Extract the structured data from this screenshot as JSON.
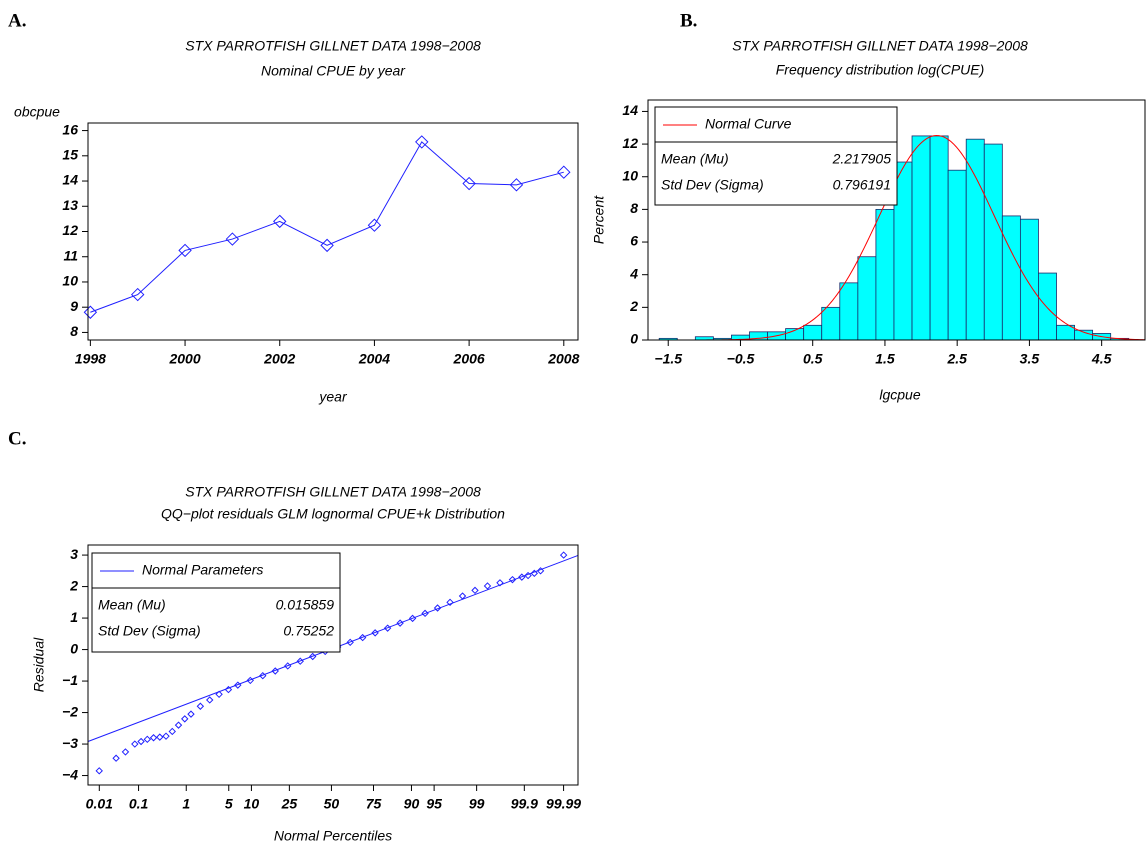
{
  "chart_data": [
    {
      "type": "line",
      "panel_label": "A.",
      "title": "STX PARROTFISH GILLNET DATA 1998−2008",
      "subtitle": "Nominal CPUE by year",
      "x_label": "year",
      "y_label": "obcpue",
      "color": "#1f1fff",
      "x": [
        1998,
        1999,
        2000,
        2001,
        2002,
        2003,
        2004,
        2005,
        2006,
        2007,
        2008
      ],
      "values": [
        8.8,
        9.5,
        11.25,
        11.7,
        12.4,
        11.45,
        12.25,
        15.55,
        13.9,
        13.85,
        14.35
      ],
      "xlim": [
        1997.95,
        2008.3
      ],
      "xticks": [
        1998,
        2000,
        2002,
        2004,
        2006,
        2008
      ],
      "ylim": [
        7.7,
        16.3
      ],
      "yticks": [
        8,
        9,
        10,
        11,
        12,
        13,
        14,
        15,
        16
      ]
    },
    {
      "type": "histogram",
      "panel_label": "B.",
      "title": "STX PARROTFISH GILLNET DATA 1998−2008",
      "subtitle": "Frequency distribution log(CPUE)",
      "x_label": "lgcpue",
      "y_label": "Percent",
      "color": "#00ffff",
      "bins": [
        -1.625,
        -1.375,
        -1.125,
        -0.875,
        -0.625,
        -0.375,
        -0.125,
        0.125,
        0.375,
        0.625,
        0.875,
        1.125,
        1.375,
        1.625,
        1.875,
        2.125,
        2.375,
        2.625,
        2.875,
        3.125,
        3.375,
        3.625,
        3.875,
        4.125,
        4.375,
        4.625,
        4.875
      ],
      "counts": [
        0.1,
        0,
        0.2,
        0.1,
        0.3,
        0.5,
        0.5,
        0.7,
        0.9,
        2.0,
        3.5,
        5.1,
        8.0,
        10.9,
        12.5,
        12.5,
        10.4,
        12.3,
        12.0,
        7.6,
        7.4,
        4.1,
        0.9,
        0.6,
        0.4,
        0.1
      ],
      "curve": {
        "name": "Normal Curve",
        "color": "#ff0000"
      },
      "legend_stats": [
        {
          "label": "Mean (Mu)",
          "value": 2.217905
        },
        {
          "label": "Std Dev (Sigma)",
          "value": 0.796191
        }
      ],
      "xlim": [
        -1.78,
        5.1
      ],
      "xticks": [
        {
          "value": -1.5,
          "label": "−1.5"
        },
        {
          "value": -0.5,
          "label": "−0.5"
        },
        0.5,
        1.5,
        2.5,
        3.5,
        4.5
      ],
      "ylim": [
        0,
        14.7
      ],
      "yticks": [
        0,
        2,
        4,
        6,
        8,
        10,
        12,
        14
      ]
    },
    {
      "type": "scatter",
      "panel_label": "C.",
      "title": "STX PARROTFISH GILLNET DATA 1998−2008",
      "subtitle": "QQ−plot residuals GLM lognormal CPUE+k Distribution",
      "x_label": "Normal Percentiles",
      "y_label": "Residual",
      "color": "#1f1fff",
      "x": [
        -3.72,
        -3.45,
        -3.3,
        -3.15,
        -3.05,
        -2.95,
        -2.85,
        -2.75,
        -2.65,
        -2.55,
        -2.45,
        -2.35,
        -2.25,
        -2.1,
        -1.95,
        -1.8,
        -1.65,
        -1.5,
        -1.3,
        -1.1,
        -0.9,
        -0.7,
        -0.5,
        -0.3,
        -0.1,
        0.1,
        0.3,
        0.5,
        0.7,
        0.9,
        1.1,
        1.3,
        1.5,
        1.7,
        1.9,
        2.1,
        2.3,
        2.5,
        2.7,
        2.9,
        3.05,
        3.15,
        3.25,
        3.35,
        3.72
      ],
      "values": [
        -3.85,
        -3.45,
        -3.25,
        -3.0,
        -2.92,
        -2.85,
        -2.8,
        -2.78,
        -2.75,
        -2.6,
        -2.4,
        -2.2,
        -2.05,
        -1.8,
        -1.6,
        -1.42,
        -1.27,
        -1.13,
        -0.98,
        -0.83,
        -0.68,
        -0.52,
        -0.37,
        -0.22,
        -0.06,
        0.08,
        0.23,
        0.38,
        0.53,
        0.68,
        0.84,
        0.99,
        1.15,
        1.32,
        1.5,
        1.7,
        1.88,
        2.02,
        2.12,
        2.22,
        2.3,
        2.35,
        2.42,
        2.5,
        3.0
      ],
      "curve": {
        "name": "Normal Parameters",
        "color": "#1f1fff"
      },
      "legend_stats": [
        {
          "label": "Mean (Mu)",
          "value": 0.015859
        },
        {
          "label": "Std Dev (Sigma)",
          "value": 0.75252
        }
      ],
      "xlim": [
        -3.9,
        3.95
      ],
      "xticks": [
        {
          "value": -3.719,
          "label": "0.01"
        },
        {
          "value": -3.09,
          "label": "0.1"
        },
        {
          "value": -2.326,
          "label": "1"
        },
        {
          "value": -1.645,
          "label": "5"
        },
        {
          "value": -1.282,
          "label": "10"
        },
        {
          "value": -0.674,
          "label": "25"
        },
        {
          "value": 0,
          "label": "50"
        },
        {
          "value": 0.674,
          "label": "75"
        },
        {
          "value": 1.282,
          "label": "90"
        },
        {
          "value": 1.645,
          "label": "95"
        },
        {
          "value": 2.326,
          "label": "99"
        },
        {
          "value": 3.09,
          "label": "99.9"
        },
        {
          "value": 3.719,
          "label": "99.99"
        }
      ],
      "ylim": [
        -4.3,
        3.32
      ],
      "yticks": [
        {
          "value": -4,
          "label": "−4"
        },
        {
          "value": -3,
          "label": "−3"
        },
        {
          "value": -2,
          "label": "−2"
        },
        {
          "value": -1,
          "label": "−1"
        },
        0,
        1,
        2,
        3
      ]
    }
  ]
}
